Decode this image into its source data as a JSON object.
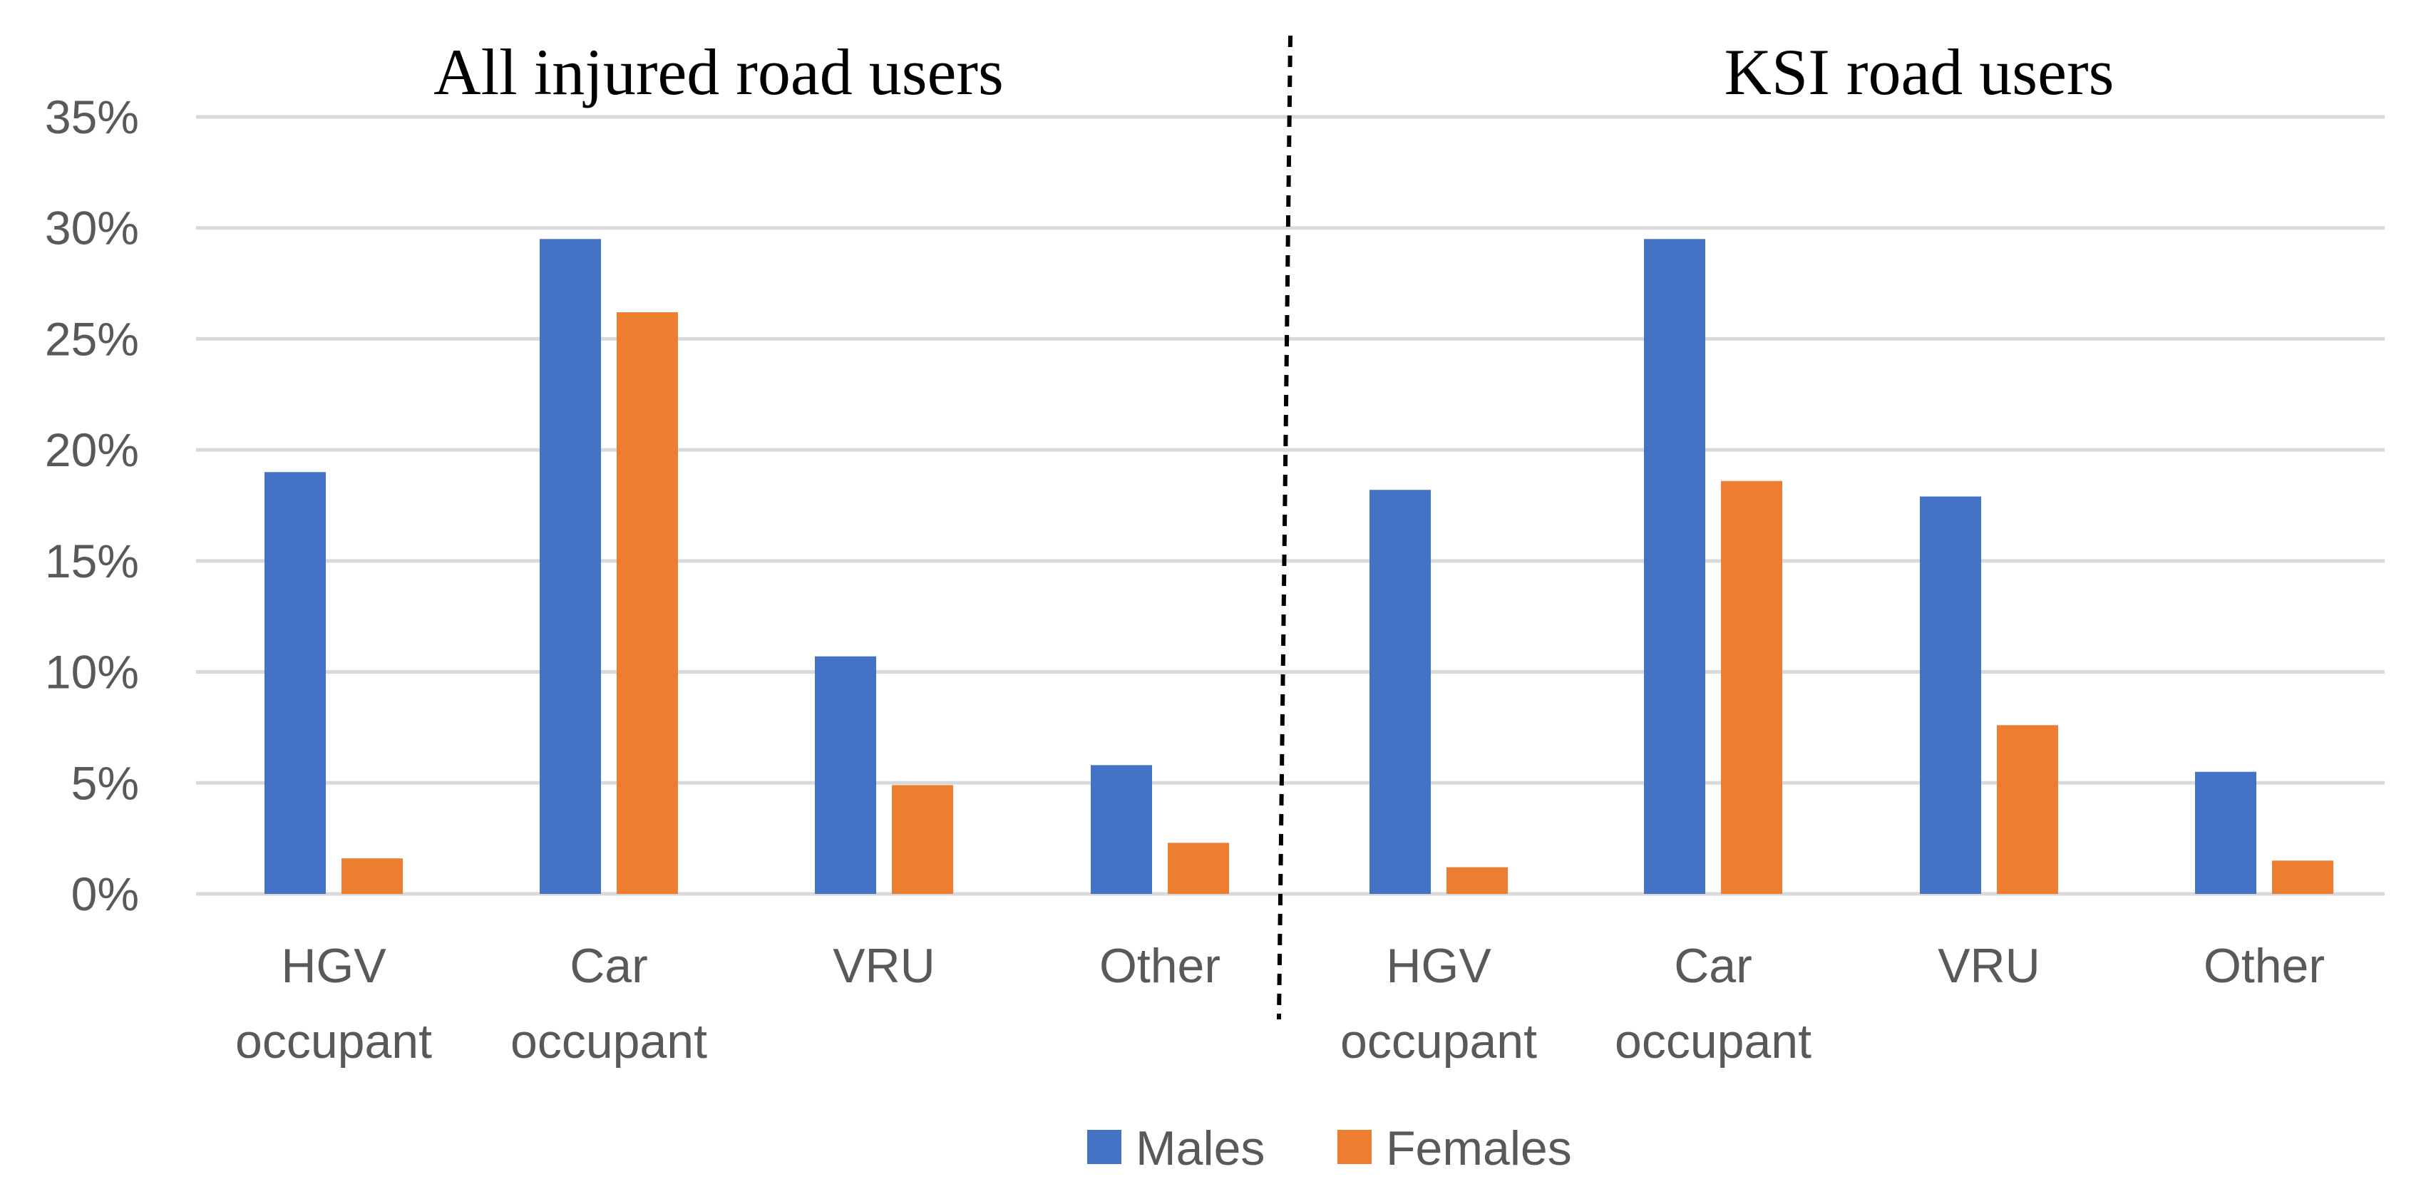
{
  "chart_data": {
    "type": "bar",
    "y_ticks": [
      "0%",
      "5%",
      "10%",
      "15%",
      "20%",
      "25%",
      "30%",
      "35%"
    ],
    "ylim": [
      0,
      35
    ],
    "grid": true,
    "legend_placement": "bottom-center",
    "colors": {
      "Males": "#4472c4",
      "Females": "#ed7d31"
    },
    "panels": [
      {
        "title": "All injured road users",
        "categories": [
          [
            "HGV",
            "occupant"
          ],
          [
            "Car",
            "occupant"
          ],
          [
            "VRU"
          ],
          [
            "Other"
          ]
        ],
        "series": [
          {
            "name": "Males",
            "values": [
              19.0,
              29.5,
              10.7,
              5.8
            ]
          },
          {
            "name": "Females",
            "values": [
              1.6,
              26.2,
              4.9,
              2.3
            ]
          }
        ]
      },
      {
        "title": "KSI road users",
        "categories": [
          [
            "HGV",
            "occupant"
          ],
          [
            "Car",
            "occupant"
          ],
          [
            "VRU"
          ],
          [
            "Other"
          ]
        ],
        "series": [
          {
            "name": "Males",
            "values": [
              18.2,
              29.5,
              17.9,
              5.5
            ]
          },
          {
            "name": "Females",
            "values": [
              1.2,
              18.6,
              7.6,
              1.5
            ]
          }
        ]
      }
    ],
    "legend": [
      "Males",
      "Females"
    ]
  }
}
